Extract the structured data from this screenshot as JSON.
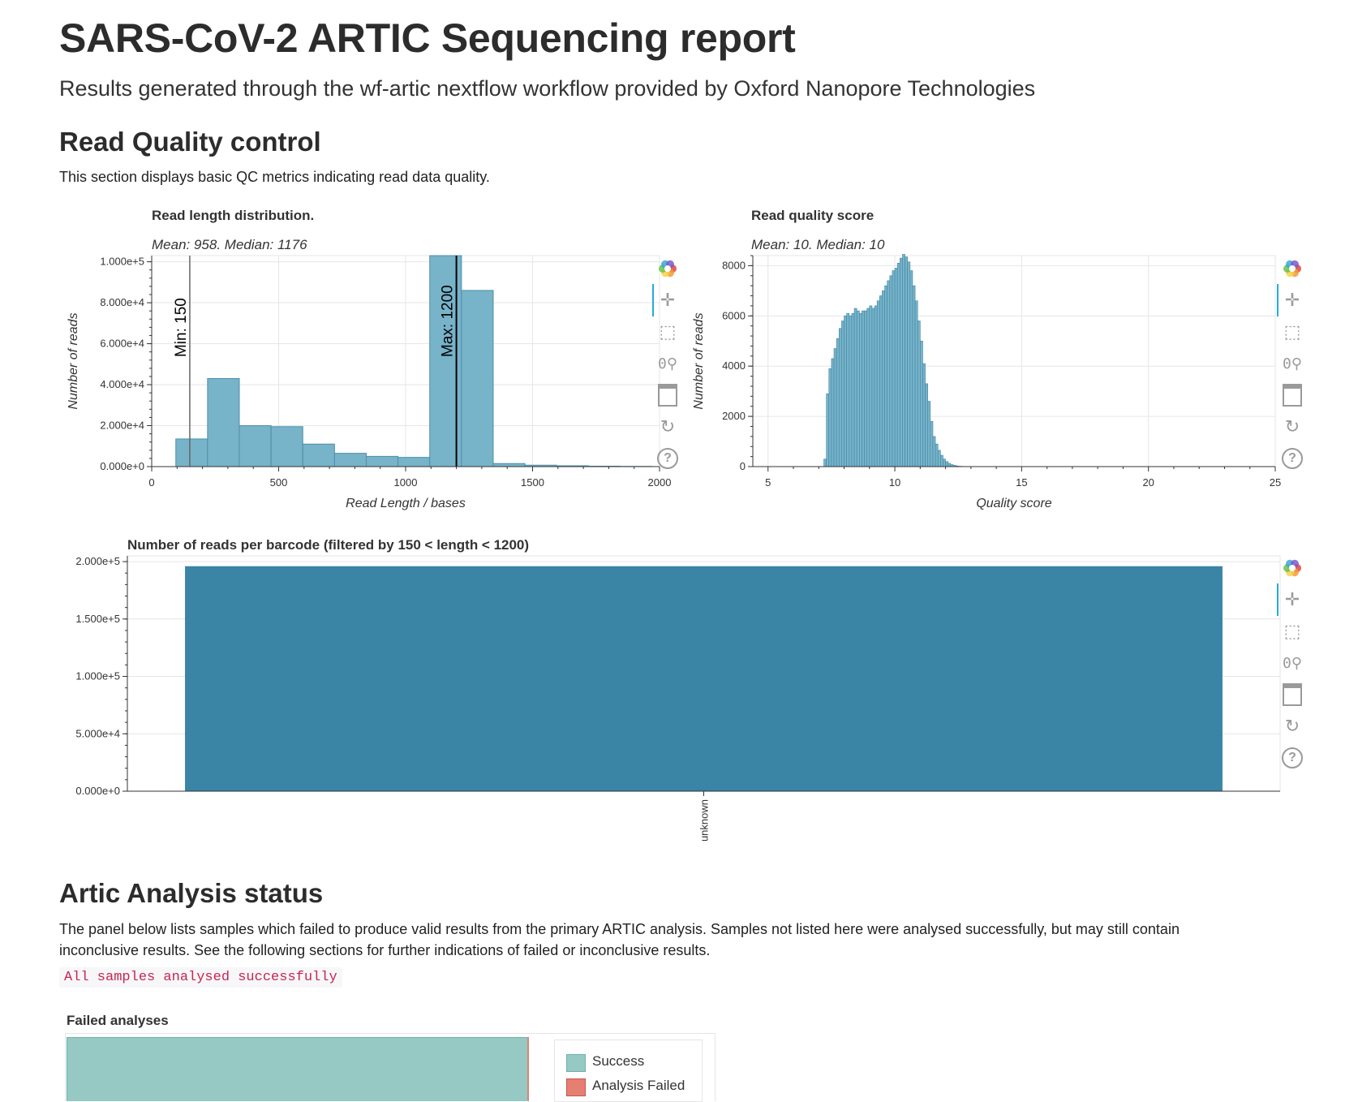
{
  "report": {
    "title": "SARS-CoV-2 ARTIC Sequencing report",
    "subtitle": "Results generated through the wf-artic nextflow workflow provided by Oxford Nanopore Technologies"
  },
  "qc_section": {
    "heading": "Read Quality control",
    "description": "This section displays basic QC metrics indicating read data quality."
  },
  "artic_section": {
    "heading": "Artic Analysis status",
    "description_line1": "The panel below lists samples which failed to produce valid results from the primary ARTIC analysis. Samples not listed here were analysed successfully, but may still contain",
    "description_line2": "inconclusive results. See the following sections for further indications of failed or inconclusive results.",
    "status_message": "All samples analysed successfully"
  },
  "toolbar_icons": [
    "bokeh-logo-icon",
    "pan-icon",
    "box-zoom-icon",
    "wheel-zoom-icon",
    "save-icon",
    "reset-icon",
    "help-icon"
  ],
  "colors": {
    "histogram": "#77b3c9",
    "barcode_bar": "#3a84a6",
    "success": "#96c9c4",
    "failed": "#e57f74"
  },
  "chart_data": [
    {
      "type": "bar",
      "title": "Read length distribution.",
      "subtitle": "Mean: 958. Median: 1176",
      "xlabel": "Read Length / bases",
      "ylabel": "Number of reads",
      "xlim": [
        0,
        2000
      ],
      "ylim": [
        0,
        103000
      ],
      "xticks": [
        0,
        500,
        1000,
        1500,
        2000
      ],
      "yticks": [
        0,
        20000,
        40000,
        60000,
        80000,
        100000
      ],
      "ytick_labels": [
        "0.000e+0",
        "2.000e+4",
        "4.000e+4",
        "6.000e+4",
        "8.000e+4",
        "1.000e+5"
      ],
      "bin_edges": [
        95,
        220,
        345,
        470,
        595,
        720,
        845,
        970,
        1095,
        1220,
        1345,
        1470,
        1595,
        1720,
        1845,
        1970
      ],
      "values": [
        13500,
        43000,
        20000,
        19500,
        11000,
        6500,
        5000,
        4500,
        103000,
        86000,
        1500,
        700,
        400,
        200,
        100
      ],
      "markers": [
        {
          "x": 150,
          "label": "Min: 150"
        },
        {
          "x": 1200,
          "label": "Max: 1200"
        }
      ],
      "grid": true
    },
    {
      "type": "bar",
      "title": "Read quality score",
      "subtitle": "Mean: 10. Median: 10",
      "xlabel": "Quality score",
      "ylabel": "Number of reads",
      "xlim": [
        4.4,
        25
      ],
      "ylim": [
        0,
        8400
      ],
      "xticks": [
        5,
        10,
        15,
        20,
        25
      ],
      "yticks": [
        0,
        2000,
        4000,
        6000,
        8000
      ],
      "bin_start": 7.2,
      "bin_width": 0.1,
      "values": [
        300,
        2900,
        3900,
        4300,
        4700,
        5100,
        5500,
        5800,
        6000,
        6100,
        6000,
        6100,
        6300,
        6200,
        6100,
        6200,
        6200,
        6300,
        6400,
        6300,
        6400,
        6600,
        6800,
        7000,
        7200,
        7400,
        7600,
        7800,
        7900,
        8100,
        8300,
        8450,
        8350,
        8150,
        7800,
        7200,
        6600,
        5800,
        5000,
        4100,
        3300,
        2600,
        1800,
        1200,
        900,
        650,
        450,
        300,
        200,
        130,
        80,
        50,
        30,
        15,
        10,
        5
      ],
      "grid": true
    },
    {
      "type": "bar",
      "title": "Number of reads per barcode (filtered by 150 < length < 1200)",
      "categories": [
        "unknown"
      ],
      "values": [
        196000
      ],
      "ylim": [
        0,
        205000
      ],
      "yticks": [
        0,
        50000,
        100000,
        150000,
        200000
      ],
      "ytick_labels": [
        "0.000e+0",
        "5.000e+4",
        "1.000e+5",
        "1.500e+5",
        "2.000e+5"
      ],
      "grid": true
    },
    {
      "type": "bar",
      "title": "Failed analyses",
      "legend": [
        "Success",
        "Analysis Failed"
      ],
      "legend_position": "right"
    }
  ]
}
